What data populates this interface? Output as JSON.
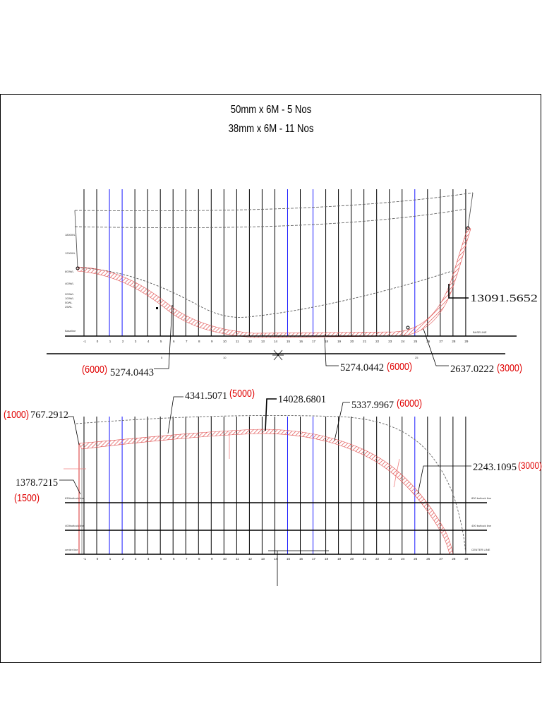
{
  "titles": {
    "line1": "50mm x 6M - 5 Nos",
    "line2": "38mm x 6M - 11 Nos"
  },
  "upper_view": {
    "station_labels": [
      "-1",
      "0",
      "1",
      "2",
      "3",
      "4",
      "5",
      "6",
      "7",
      "8",
      "9",
      "10",
      "11",
      "12",
      "13",
      "14",
      "15",
      "16",
      "17",
      "18",
      "19",
      "20",
      "21",
      "22",
      "23",
      "24",
      "25",
      "26",
      "27",
      "28",
      "29"
    ],
    "left_wl_labels": [
      "1800WL",
      "1200WL",
      "800WL",
      "400WL",
      "200WL",
      "100WL",
      "50WL",
      "25WL",
      "Baseline"
    ],
    "right_small_label": "BASELINE",
    "callouts": {
      "c1_value": "5274.0443",
      "c1_qty": "(6000)",
      "c2_value": "5274.0442",
      "c2_qty": "(6000)",
      "c3_value": "2637.0222",
      "c3_qty": "(3000)",
      "c4_value": "13091.5652"
    }
  },
  "lower_view": {
    "station_labels": [
      "-1",
      "0",
      "1",
      "2",
      "3",
      "4",
      "5",
      "6",
      "7",
      "8",
      "9",
      "10",
      "11",
      "12",
      "13",
      "14",
      "15",
      "16",
      "17",
      "18",
      "19",
      "20",
      "21",
      "22",
      "23",
      "24",
      "25",
      "26",
      "27",
      "28",
      "29"
    ],
    "left_buttock_labels": [
      "830buttock line",
      "400buttock line",
      "center line"
    ],
    "right_buttock_labels": [
      "830 buttock line",
      "400 buttock line",
      "CENTER LINE"
    ],
    "callouts": {
      "d1_value": "767.2912",
      "d1_qty": "(1000)",
      "d2_value": "4341.5071",
      "d2_qty": "(5000)",
      "d3_value": "14028.6801",
      "d4_value": "5337.9967",
      "d4_qty": "(6000)",
      "d5_value": "1378.7215",
      "d5_qty": "(1500)",
      "d6_value": "2243.1095",
      "d6_qty": "(3000)"
    }
  },
  "colors": {
    "stations": "#000000",
    "blue_stations": "#1a1aff",
    "plank": "#e05050",
    "callout_red": "#e00000",
    "hull_lines": "#555555"
  }
}
